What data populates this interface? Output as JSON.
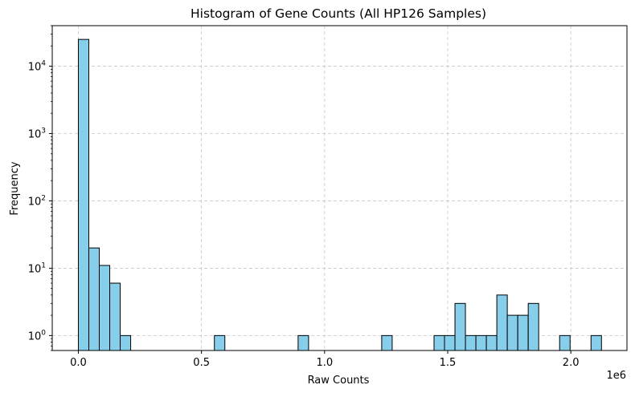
{
  "chart_data": {
    "type": "bar",
    "title": "Histogram of Gene Counts (All HP126 Samples)",
    "xlabel": "Raw Counts",
    "ylabel": "Frequency",
    "x_offset_label": "1e6",
    "x_scale": 1000000,
    "xlim": [
      -0.106,
      2.228
    ],
    "ylim": [
      0.6,
      40000
    ],
    "y_scale": "log",
    "grid": true,
    "bar_color": "#87ceeb",
    "edge_color": "#000000",
    "bin_width": 0.0425,
    "x_ticks": [
      {
        "value": 0.0,
        "label": "0.0"
      },
      {
        "value": 0.5,
        "label": "0.5"
      },
      {
        "value": 1.0,
        "label": "1.0"
      },
      {
        "value": 1.5,
        "label": "1.5"
      },
      {
        "value": 2.0,
        "label": "2.0"
      }
    ],
    "y_ticks": [
      {
        "value": 1,
        "base": "10",
        "exp": "0"
      },
      {
        "value": 10,
        "base": "10",
        "exp": "1"
      },
      {
        "value": 100,
        "base": "10",
        "exp": "2"
      },
      {
        "value": 1000,
        "base": "10",
        "exp": "3"
      },
      {
        "value": 10000,
        "base": "10",
        "exp": "4"
      }
    ],
    "bins": [
      {
        "x": 0.0,
        "count": 25000
      },
      {
        "x": 0.0425,
        "count": 20
      },
      {
        "x": 0.085,
        "count": 11
      },
      {
        "x": 0.1275,
        "count": 6
      },
      {
        "x": 0.17,
        "count": 1
      },
      {
        "x": 0.5525,
        "count": 1
      },
      {
        "x": 0.8925,
        "count": 1
      },
      {
        "x": 1.232,
        "count": 1
      },
      {
        "x": 1.4445,
        "count": 1
      },
      {
        "x": 1.487,
        "count": 1
      },
      {
        "x": 1.5295,
        "count": 3
      },
      {
        "x": 1.572,
        "count": 1
      },
      {
        "x": 1.6145,
        "count": 1
      },
      {
        "x": 1.657,
        "count": 1
      },
      {
        "x": 1.6995,
        "count": 4
      },
      {
        "x": 1.742,
        "count": 2
      },
      {
        "x": 1.7845,
        "count": 2
      },
      {
        "x": 1.827,
        "count": 3
      },
      {
        "x": 1.9545,
        "count": 1
      },
      {
        "x": 2.082,
        "count": 1
      }
    ]
  }
}
